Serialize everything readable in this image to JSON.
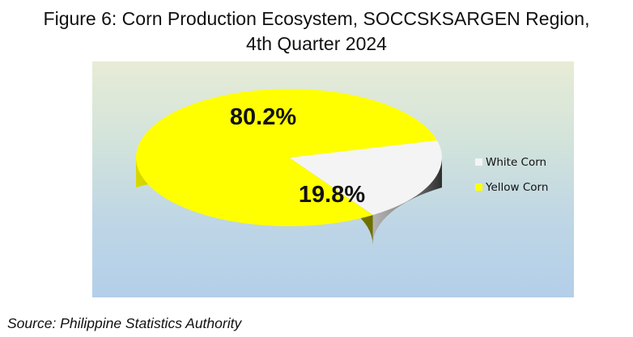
{
  "title_line1": "Figure 6:  Corn Production Ecosystem, SOCCSKSARGEN Region,",
  "title_line2": "4th Quarter 2024",
  "source": "Source: Philippine Statistics Authority",
  "chart_data": {
    "type": "pie",
    "style": "3d",
    "title": "Figure 6:  Corn Production Ecosystem, SOCCSKSARGEN Region, 4th Quarter 2024",
    "categories": [
      "White Corn",
      "Yellow Corn"
    ],
    "values": [
      19.8,
      80.2
    ],
    "data_labels": [
      "19.8%",
      "80.2%"
    ],
    "colors": [
      "#f4f4f4",
      "#ffff00"
    ],
    "legend_position": "right"
  }
}
